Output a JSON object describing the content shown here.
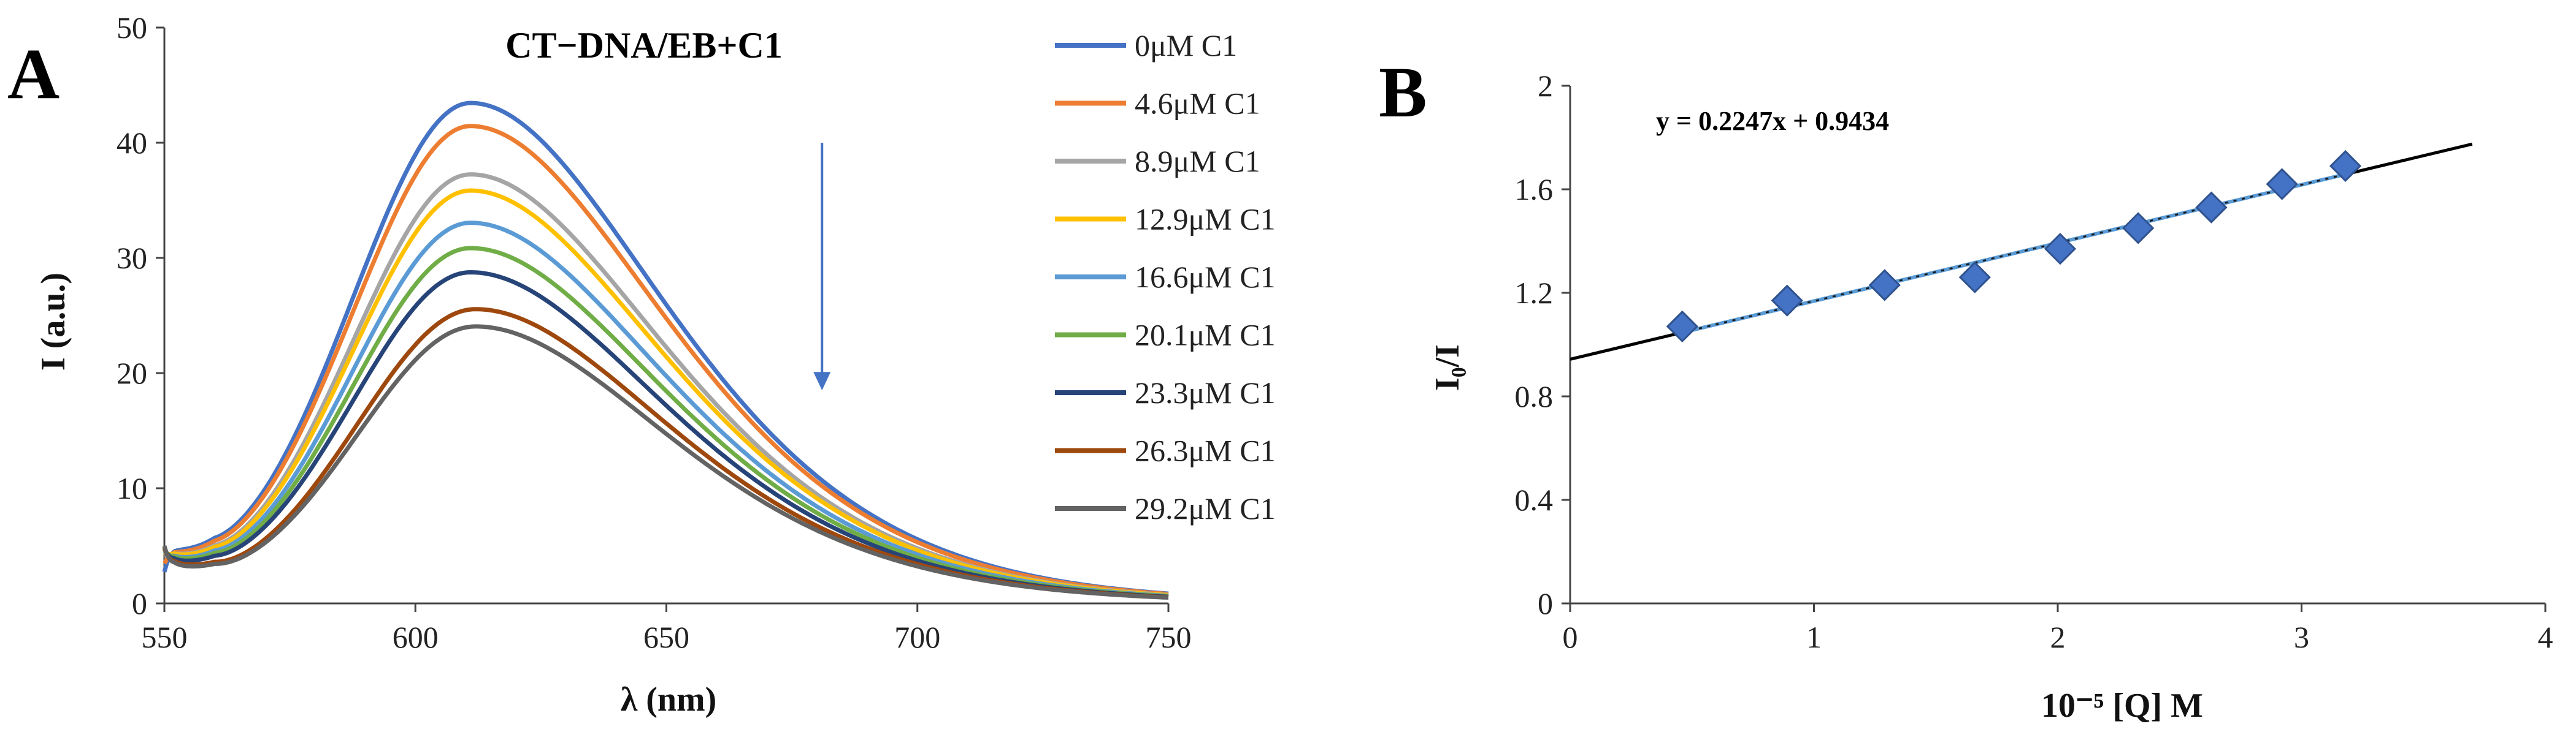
{
  "chart_data": [
    {
      "type": "line",
      "panel_label": "A",
      "title": "CT−DNA/EB+C1",
      "xlabel": "λ (nm)",
      "ylabel": "I (a.u.)",
      "xlim": [
        550,
        750
      ],
      "ylim": [
        0,
        50
      ],
      "xticks": [
        "550",
        "600",
        "650",
        "700",
        "750"
      ],
      "yticks": [
        "0",
        "10",
        "20",
        "30",
        "40",
        "50"
      ],
      "legend_position": "right",
      "annotation": "arrow pointing down (intensity decreases with increasing [C1])",
      "arrow": {
        "x": 681,
        "y_start": 40,
        "y_end": 18.5
      },
      "series": [
        {
          "name": "0μM C1",
          "color": "#4472C4",
          "peak_x": 611,
          "peak": 43.2,
          "start": 1.0,
          "baseline": 2.6
        },
        {
          "name": "4.6μM C1",
          "color": "#ED7D31",
          "peak_x": 611,
          "peak": 41.2,
          "start": 1.8,
          "baseline": 2.5
        },
        {
          "name": "8.9μM C1",
          "color": "#A5A5A5",
          "peak_x": 611,
          "peak": 37.0,
          "start": 2.6,
          "baseline": 2.5
        },
        {
          "name": "12.9μM C1",
          "color": "#FFC000",
          "peak_x": 611,
          "peak": 35.6,
          "start": 3.0,
          "baseline": 2.5
        },
        {
          "name": "16.6μM C1",
          "color": "#5B9BD5",
          "peak_x": 611,
          "peak": 32.8,
          "start": 3.2,
          "baseline": 2.4
        },
        {
          "name": "20.1μM C1",
          "color": "#70AD47",
          "peak_x": 611,
          "peak": 30.6,
          "start": 3.4,
          "baseline": 2.4
        },
        {
          "name": "23.3μM C1",
          "color": "#264478",
          "peak_x": 611,
          "peak": 28.5,
          "start": 3.6,
          "baseline": 2.3
        },
        {
          "name": "26.3μM C1",
          "color": "#9E480E",
          "peak_x": 612,
          "peak": 25.3,
          "start": 3.8,
          "baseline": 2.3
        },
        {
          "name": "29.2μM C1",
          "color": "#636363",
          "peak_x": 612,
          "peak": 23.8,
          "start": 4.0,
          "baseline": 2.2
        }
      ]
    },
    {
      "type": "scatter",
      "panel_label": "B",
      "xlabel": "10⁻⁵ [Q] M",
      "ylabel": "I₀/I",
      "xlim": [
        0,
        4
      ],
      "ylim": [
        0,
        2
      ],
      "xticks": [
        "0",
        "1",
        "2",
        "3",
        "4"
      ],
      "yticks": [
        "0",
        "0.4",
        "0.8",
        "1.2",
        "1.6",
        "2"
      ],
      "equation": "y = 0.2247x + 0.9434",
      "fit": {
        "slope": 0.2247,
        "intercept": 0.9434,
        "x_range": [
          0,
          3.7
        ]
      },
      "series": [
        {
          "name": "I0/I",
          "color": "#4472C4",
          "x": [
            0.46,
            0.89,
            1.29,
            1.66,
            2.01,
            2.33,
            2.63,
            2.92,
            3.18
          ],
          "y": [
            1.07,
            1.17,
            1.23,
            1.26,
            1.37,
            1.45,
            1.53,
            1.62,
            1.69
          ]
        }
      ]
    }
  ]
}
